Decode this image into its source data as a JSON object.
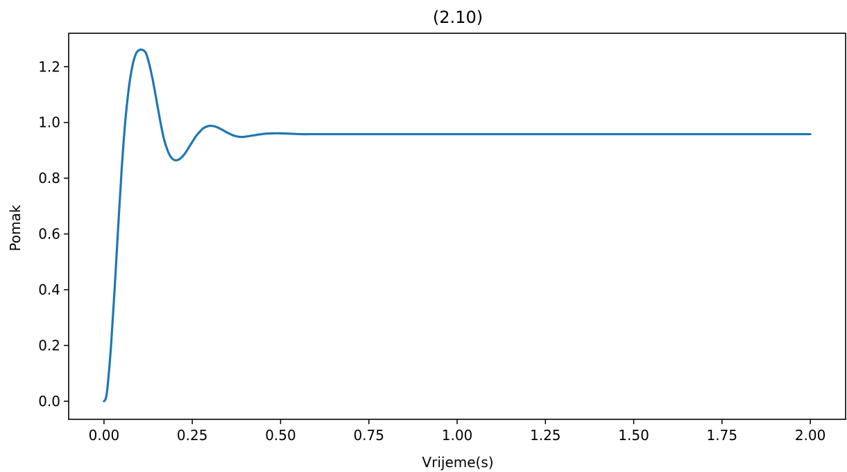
{
  "chart_data": {
    "type": "line",
    "title": "(2.10)",
    "xlabel": "Vrijeme(s)",
    "ylabel": "Pomak",
    "xlim": [
      -0.1,
      2.1
    ],
    "ylim": [
      -0.065,
      1.32
    ],
    "xticks": [
      0.0,
      0.25,
      0.5,
      0.75,
      1.0,
      1.25,
      1.5,
      1.75,
      2.0
    ],
    "xtick_labels": [
      "0.00",
      "0.25",
      "0.50",
      "0.75",
      "1.00",
      "1.25",
      "1.50",
      "1.75",
      "2.00"
    ],
    "yticks": [
      0.0,
      0.2,
      0.4,
      0.6,
      0.8,
      1.0,
      1.2
    ],
    "ytick_labels": [
      "0.0",
      "0.2",
      "0.4",
      "0.6",
      "0.8",
      "1.0",
      "1.2"
    ],
    "grid": false,
    "legend": "none",
    "series": [
      {
        "color": "#1f77b4",
        "x": [
          0.0,
          0.005,
          0.01,
          0.02,
          0.03,
          0.04,
          0.05,
          0.06,
          0.07,
          0.08,
          0.09,
          0.1,
          0.11,
          0.115,
          0.12,
          0.13,
          0.14,
          0.15,
          0.16,
          0.17,
          0.18,
          0.19,
          0.2,
          0.21,
          0.22,
          0.23,
          0.24,
          0.25,
          0.26,
          0.27,
          0.28,
          0.29,
          0.3,
          0.31,
          0.32,
          0.33,
          0.34,
          0.35,
          0.36,
          0.37,
          0.38,
          0.39,
          0.4,
          0.42,
          0.44,
          0.46,
          0.48,
          0.5,
          0.52,
          0.54,
          0.56,
          0.58,
          0.6,
          0.62,
          0.65,
          0.7,
          0.75,
          0.8,
          0.9,
          1.0,
          1.25,
          1.5,
          1.75,
          2.0
        ],
        "y": [
          0.0,
          0.01,
          0.05,
          0.2,
          0.4,
          0.62,
          0.83,
          1.0,
          1.12,
          1.2,
          1.245,
          1.26,
          1.26,
          1.255,
          1.245,
          1.2,
          1.14,
          1.07,
          1.0,
          0.94,
          0.9,
          0.875,
          0.865,
          0.866,
          0.875,
          0.89,
          0.91,
          0.93,
          0.95,
          0.965,
          0.978,
          0.985,
          0.988,
          0.987,
          0.983,
          0.977,
          0.97,
          0.963,
          0.957,
          0.952,
          0.949,
          0.948,
          0.949,
          0.953,
          0.957,
          0.96,
          0.961,
          0.961,
          0.96,
          0.959,
          0.958,
          0.958,
          0.958,
          0.958,
          0.958,
          0.958,
          0.958,
          0.958,
          0.958,
          0.958,
          0.958,
          0.958,
          0.958,
          0.958
        ]
      }
    ]
  }
}
